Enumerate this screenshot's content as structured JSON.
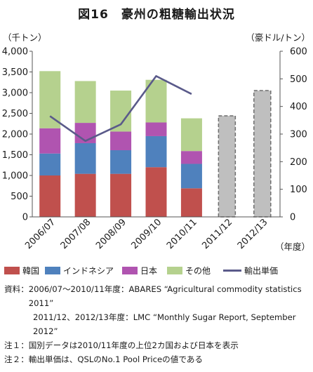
{
  "figure": {
    "title": "図16　豪州の粗糖輸出状況"
  },
  "chart_data": {
    "type": "bar",
    "categories": [
      "2006/07",
      "2007/08",
      "2008/09",
      "2009/10",
      "2010/11",
      "2011/12",
      "2012/13"
    ],
    "left_axis_unit": "（千トン）",
    "right_axis_unit": "（豪ドル/トン）",
    "x_axis_unit": "（年度）",
    "ylim_left": [
      0,
      4000
    ],
    "left_ticks": [
      "0",
      "500",
      "1,000",
      "1,500",
      "2,000",
      "2,500",
      "3,000",
      "3,500",
      "4,000"
    ],
    "ylim_right": [
      0,
      600
    ],
    "right_ticks": [
      "0",
      "100",
      "200",
      "300",
      "400",
      "500",
      "600"
    ],
    "grid": false,
    "legend_position": "bottom",
    "series": [
      {
        "name": "韓国",
        "color": "#c0504d",
        "values": [
          1000,
          1040,
          1040,
          1200,
          690,
          null,
          null
        ]
      },
      {
        "name": "インドネシア",
        "color": "#4f81bd",
        "values": [
          530,
          740,
          570,
          750,
          590,
          null,
          null
        ]
      },
      {
        "name": "日本",
        "color": "#b054b0",
        "values": [
          610,
          490,
          450,
          330,
          310,
          null,
          null
        ]
      },
      {
        "name": "その他",
        "color": "#b5d18e",
        "values": [
          1380,
          1010,
          990,
          1030,
          790,
          null,
          null
        ]
      }
    ],
    "total_only": {
      "name": "",
      "color": "#bfbfbf",
      "values": [
        null,
        null,
        null,
        null,
        null,
        2440,
        3050
      ]
    },
    "line_series": {
      "name": "輸出単価",
      "color": "#5a5a8a",
      "axis": "right",
      "values": [
        365,
        275,
        335,
        510,
        445,
        null,
        null
      ]
    }
  },
  "notes": {
    "source_label": "資料：",
    "source_line1": "2006/07～2010/11年度：ABARES “Agricultural commodity statistics 2011”",
    "source_line2": "2011/12、2012/13年度：LMC “Monthly Sugar Report, September 2012”",
    "note1_label": "注１：",
    "note1": "国別データは2010/11年度の上位2カ国および日本を表示",
    "note2_label": "注２：",
    "note2": "輸出単価は、QSLのNo.1 Pool Priceの値である"
  }
}
